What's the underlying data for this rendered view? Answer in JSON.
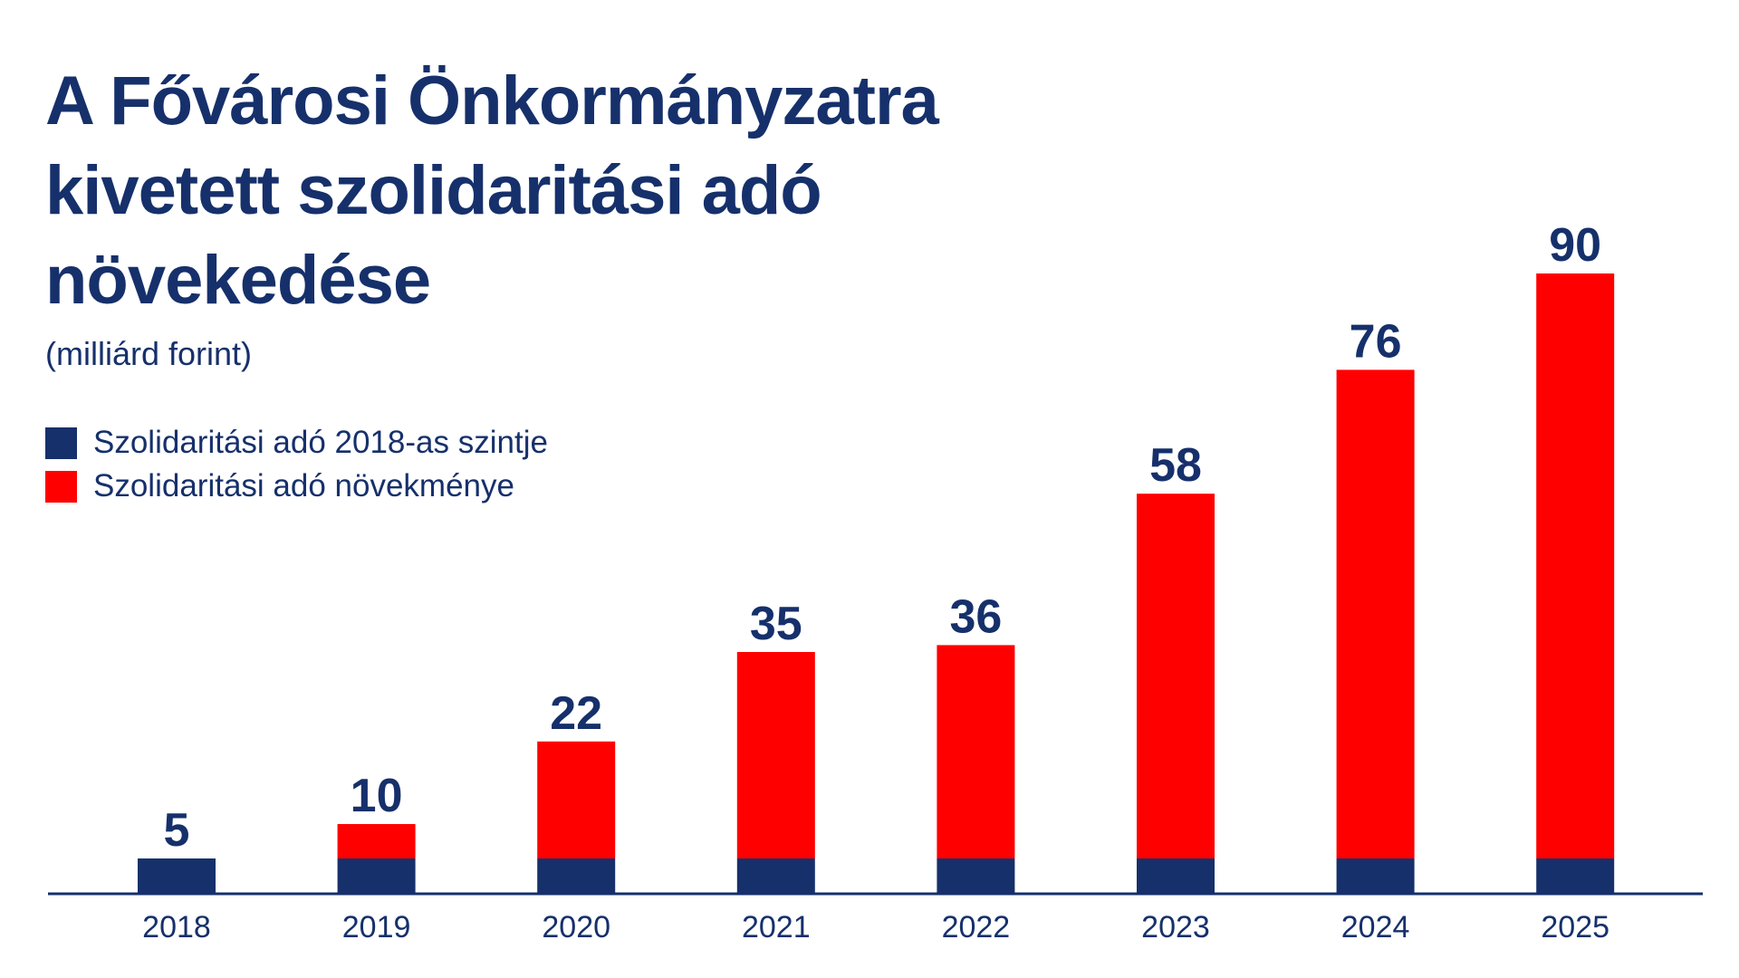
{
  "chart_data": {
    "type": "bar",
    "title_lines": [
      "A Fővárosi Önkormányzatra",
      "kivetett szolidaritási adó",
      "növekedése"
    ],
    "subtitle": "(milliárd forint)",
    "categories": [
      "2018",
      "2019",
      "2020",
      "2021",
      "2022",
      "2023",
      "2024",
      "2025"
    ],
    "totals": [
      5,
      10,
      22,
      35,
      36,
      58,
      76,
      90
    ],
    "series": [
      {
        "name": "Szolidaritási adó 2018-as szintje",
        "color": "#16306b",
        "values": [
          5,
          5,
          5,
          5,
          5,
          5,
          5,
          5
        ]
      },
      {
        "name": "Szolidaritási adó növekménye",
        "color": "#ff0000",
        "values": [
          0,
          5,
          17,
          30,
          31,
          53,
          71,
          85
        ]
      }
    ],
    "ylim": [
      0,
      90
    ],
    "grid": false,
    "legend_position": "top-left",
    "axis_color": "#16306b",
    "label_color": "#16306b"
  }
}
